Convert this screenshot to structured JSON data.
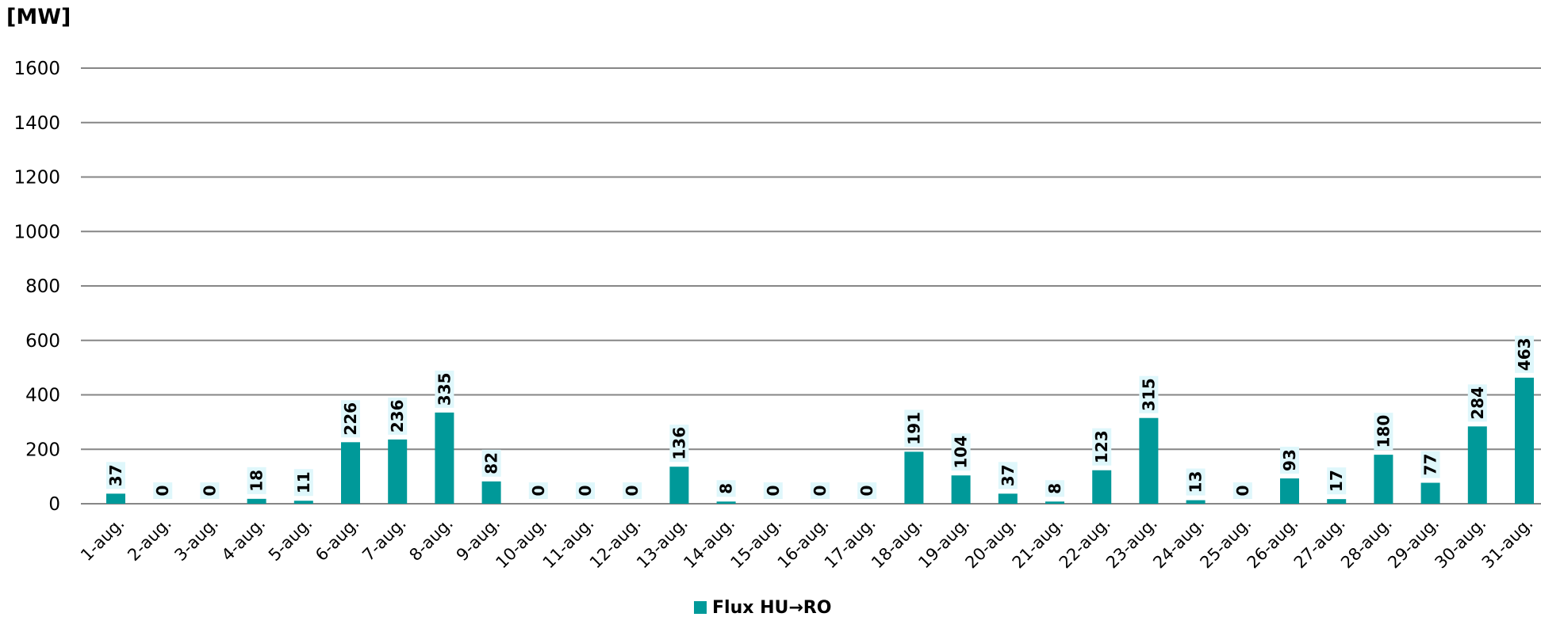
{
  "chart_data": {
    "type": "bar",
    "y_unit_label": "[MW]",
    "categories": [
      "1-aug.",
      "2-aug.",
      "3-aug.",
      "4-aug.",
      "5-aug.",
      "6-aug.",
      "7-aug.",
      "8-aug.",
      "9-aug.",
      "10-aug.",
      "11-aug.",
      "12-aug.",
      "13-aug.",
      "14-aug.",
      "15-aug.",
      "16-aug.",
      "17-aug.",
      "18-aug.",
      "19-aug.",
      "20-aug.",
      "21-aug.",
      "22-aug.",
      "23-aug.",
      "24-aug.",
      "25-aug.",
      "26-aug.",
      "27-aug.",
      "28-aug.",
      "29-aug.",
      "30-aug.",
      "31-aug."
    ],
    "series": [
      {
        "name": "Flux HU→RO",
        "color": "#009999",
        "values": [
          37,
          0,
          0,
          18,
          11,
          226,
          236,
          335,
          82,
          0,
          0,
          0,
          136,
          8,
          0,
          0,
          0,
          191,
          104,
          37,
          8,
          123,
          315,
          13,
          0,
          93,
          17,
          180,
          77,
          284,
          463
        ]
      }
    ],
    "ylim": [
      0,
      1600
    ],
    "y_ticks": [
      "0",
      "200",
      "400",
      "600",
      "800",
      "1000",
      "1200",
      "1400",
      "1600"
    ],
    "grid": true,
    "legend_position": "bottom-center",
    "colors": {
      "bar": "#009999",
      "label_background": "#dff7fb",
      "gridline": "#868686",
      "axis": "#868686"
    }
  }
}
